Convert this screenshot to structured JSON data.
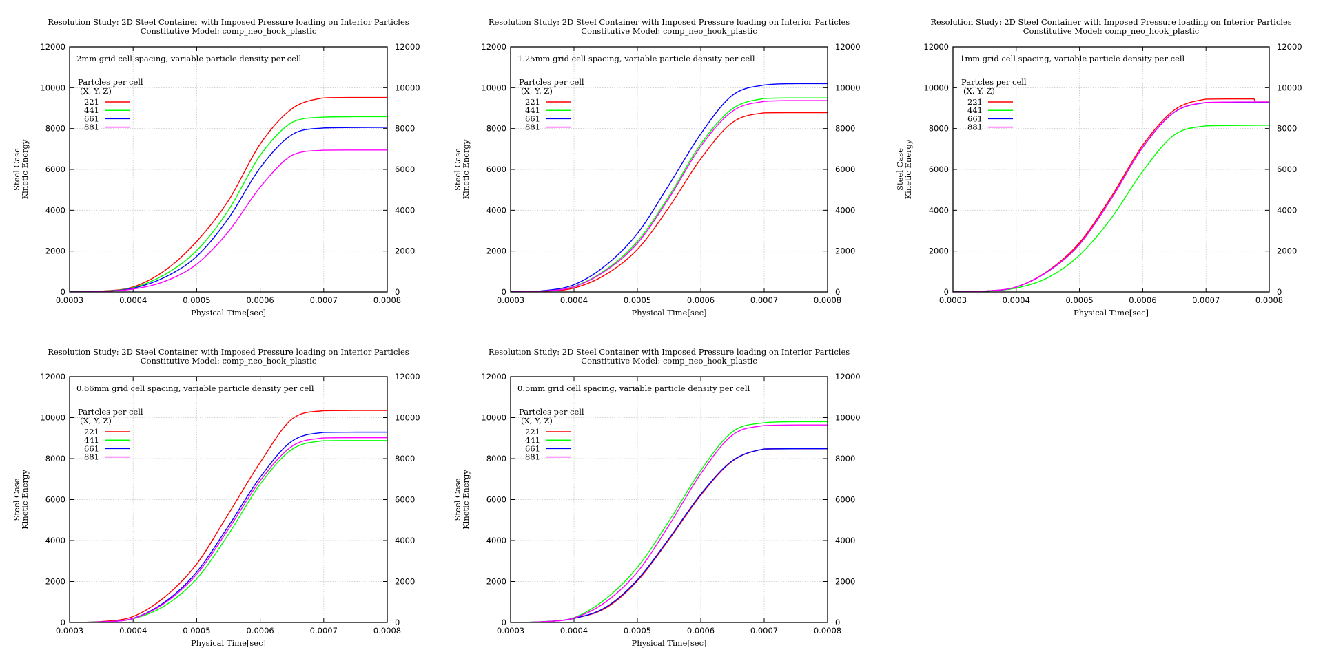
{
  "figure": {
    "colors": {
      "221": "#ff0000",
      "441": "#00ff00",
      "661": "#0000ff",
      "881": "#ff00ff"
    }
  },
  "chart_data": [
    {
      "type": "line",
      "title": "Resolution Study: 2D Steel Container with Imposed Pressure loading on Interior Particles",
      "subtitle": "Constitutive Model: comp_neo_hook_plastic",
      "annotation": "2mm grid cell spacing, variable particle density per cell",
      "xlabel": "Physical Time[sec]",
      "ylabel": [
        "Steel Case",
        "Kinetic Energy"
      ],
      "xlim": [
        0.0003,
        0.0008
      ],
      "ylim": [
        0,
        12000
      ],
      "xticks": [
        "0.0003",
        "0.0004",
        "0.0005",
        "0.0006",
        "0.0007",
        "0.0008"
      ],
      "yticks": [
        "0",
        "2000",
        "4000",
        "6000",
        "8000",
        "10000",
        "12000"
      ],
      "grid": true,
      "legend": {
        "title": [
          "Partcles per cell",
          "(X, Y, Z)"
        ],
        "placement": "top-left"
      },
      "x": [
        0.0003,
        0.00035,
        0.0004,
        0.00045,
        0.0005,
        0.00055,
        0.0006,
        0.00065,
        0.0007,
        0.00075,
        0.0008
      ],
      "series": [
        {
          "name": "221",
          "values": [
            0,
            40,
            245,
            1050,
            2470,
            4470,
            7240,
            8970,
            9500,
            9520,
            9520
          ]
        },
        {
          "name": "441",
          "values": [
            0,
            30,
            210,
            850,
            2020,
            4000,
            6690,
            8300,
            8560,
            8580,
            8580
          ]
        },
        {
          "name": "661",
          "values": [
            0,
            25,
            180,
            720,
            1740,
            3600,
            6080,
            7700,
            8030,
            8050,
            8060
          ]
        },
        {
          "name": "881",
          "values": [
            0,
            20,
            140,
            520,
            1360,
            2950,
            5130,
            6690,
            6940,
            6950,
            6950
          ]
        }
      ]
    },
    {
      "type": "line",
      "title": "Resolution Study: 2D Steel Container with Imposed Pressure loading on Interior Particles",
      "subtitle": "Constitutive Model: comp_neo_hook_plastic",
      "annotation": "1.25mm grid cell spacing, variable particle density per cell",
      "xlabel": "Physical Time[sec]",
      "ylabel": [
        "Steel Case",
        "Kinetic Energy"
      ],
      "xlim": [
        0.0003,
        0.0008
      ],
      "ylim": [
        0,
        12000
      ],
      "xticks": [
        "0.0003",
        "0.0004",
        "0.0005",
        "0.0006",
        "0.0007",
        "0.0008"
      ],
      "yticks": [
        "0",
        "2000",
        "4000",
        "6000",
        "8000",
        "10000",
        "12000"
      ],
      "grid": true,
      "legend": {
        "title": [
          "Partcles per cell",
          "(X, Y, Z)"
        ],
        "placement": "top-left"
      },
      "x": [
        0.0003,
        0.00035,
        0.0004,
        0.00045,
        0.0005,
        0.00055,
        0.0006,
        0.00065,
        0.0007,
        0.00075,
        0.0008
      ],
      "series": [
        {
          "name": "221",
          "values": [
            0,
            30,
            190,
            850,
            2080,
            4150,
            6520,
            8300,
            8770,
            8780,
            8780
          ]
        },
        {
          "name": "441",
          "values": [
            0,
            40,
            270,
            1080,
            2470,
            4700,
            7240,
            8970,
            9470,
            9500,
            9500
          ]
        },
        {
          "name": "661",
          "values": [
            0,
            55,
            355,
            1300,
            2860,
            5250,
            7740,
            9630,
            10130,
            10200,
            10200
          ]
        },
        {
          "name": "881",
          "values": [
            0,
            38,
            255,
            1040,
            2380,
            4600,
            7130,
            8850,
            9330,
            9370,
            9370
          ]
        }
      ]
    },
    {
      "type": "line",
      "title": "Resolution Study: 2D Steel Container with Imposed Pressure loading on Interior Particles",
      "subtitle": "Constitutive Model: comp_neo_hook_plastic",
      "annotation": "1mm grid cell spacing, variable particle density per cell",
      "xlabel": "Physical Time[sec]",
      "ylabel": [
        "Steel Case",
        "Kinetic Energy"
      ],
      "xlim": [
        0.0003,
        0.0008
      ],
      "ylim": [
        0,
        12000
      ],
      "xticks": [
        "0.0003",
        "0.0004",
        "0.0005",
        "0.0006",
        "0.0007",
        "0.0008"
      ],
      "yticks": [
        "0",
        "2000",
        "4000",
        "6000",
        "8000",
        "10000",
        "12000"
      ],
      "grid": true,
      "legend": {
        "title": [
          "Partcles per cell",
          "(X, Y, Z)"
        ],
        "placement": "top-left"
      },
      "x": [
        0.0003,
        0.00035,
        0.0004,
        0.00045,
        0.0005,
        0.00055,
        0.0006,
        0.00065,
        0.0007,
        0.00075,
        0.000776,
        0.000778,
        0.0008
      ],
      "series": [
        {
          "name": "221",
          "values": [
            0,
            40,
            245,
            1030,
            2410,
            4650,
            7190,
            8910,
            9440,
            9450,
            9450,
            9300,
            9300
          ]
        },
        {
          "name": "441",
          "values": [
            0,
            30,
            190,
            700,
            1800,
            3600,
            5910,
            7690,
            8130,
            8150,
            8155,
            8160,
            8160
          ]
        },
        {
          "name": "661",
          "values": [
            0,
            40,
            240,
            1000,
            2330,
            4550,
            7080,
            8800,
            9270,
            9290,
            9290,
            9290,
            9290
          ]
        },
        {
          "name": "881",
          "values": [
            0,
            40,
            240,
            1010,
            2340,
            4560,
            7090,
            8810,
            9280,
            9300,
            9300,
            9300,
            9300
          ]
        }
      ]
    },
    {
      "type": "line",
      "title": "Resolution Study: 2D Steel Container with Imposed Pressure loading on Interior Particles",
      "subtitle": "Constitutive Model: comp_neo_hook_plastic",
      "annotation": "0.66mm grid cell spacing, variable particle density per cell",
      "xlabel": "Physical Time[sec]",
      "ylabel": [
        "Steel Case",
        "Kinetic Energy"
      ],
      "xlim": [
        0.0003,
        0.0008
      ],
      "ylim": [
        0,
        12000
      ],
      "xticks": [
        "0.0003",
        "0.0004",
        "0.0005",
        "0.0006",
        "0.0007",
        "0.0008"
      ],
      "yticks": [
        "0",
        "2000",
        "4000",
        "6000",
        "8000",
        "10000",
        "12000"
      ],
      "grid": true,
      "legend": {
        "title": [
          "Partcles per cell",
          "(X, Y, Z)"
        ],
        "placement": "top-left"
      },
      "x": [
        0.0003,
        0.00035,
        0.0004,
        0.00045,
        0.0005,
        0.00055,
        0.0006,
        0.00065,
        0.0007,
        0.00075,
        0.0008
      ],
      "series": [
        {
          "name": "221",
          "values": [
            0,
            45,
            290,
            1250,
            2850,
            5300,
            7810,
            9930,
            10340,
            10350,
            10350
          ]
        },
        {
          "name": "441",
          "values": [
            0,
            25,
            180,
            820,
            2130,
            4300,
            6750,
            8450,
            8870,
            8880,
            8880
          ]
        },
        {
          "name": "661",
          "values": [
            0,
            30,
            200,
            1000,
            2460,
            4700,
            7090,
            8850,
            9280,
            9290,
            9290
          ]
        },
        {
          "name": "881",
          "values": [
            0,
            28,
            190,
            950,
            2350,
            4550,
            6920,
            8600,
            9010,
            9020,
            9020
          ]
        }
      ]
    },
    {
      "type": "line",
      "title": "Resolution Study: 2D Steel Container with Imposed Pressure loading on Interior Particles",
      "subtitle": "Constitutive Model: comp_neo_hook_plastic",
      "annotation": "0.5mm grid cell spacing, variable particle density per cell",
      "xlabel": "Physical Time[sec]",
      "ylabel": [
        "Steel Case",
        "Kinetic Energy"
      ],
      "xlim": [
        0.0003,
        0.0008
      ],
      "ylim": [
        0,
        12000
      ],
      "xticks": [
        "0.0003",
        "0.0004",
        "0.0005",
        "0.0006",
        "0.0007",
        "0.0008"
      ],
      "yticks": [
        "0",
        "2000",
        "4000",
        "6000",
        "8000",
        "10000",
        "12000"
      ],
      "grid": true,
      "legend": {
        "title": [
          "Partcles per cell",
          "(X, Y, Z)"
        ],
        "placement": "top-left"
      },
      "x": [
        0.0003,
        0.00035,
        0.0004,
        0.00045,
        0.0005,
        0.00055,
        0.0006,
        0.00065,
        0.0007,
        0.00075,
        0.0008
      ],
      "series": [
        {
          "name": "221",
          "values": [
            0,
            30,
            200,
            700,
            2030,
            4050,
            6210,
            7880,
            8470,
            8480,
            8480
          ]
        },
        {
          "name": "441",
          "values": [
            0,
            40,
            235,
            1150,
            2690,
            4950,
            7420,
            9310,
            9750,
            9800,
            9800
          ]
        },
        {
          "name": "661",
          "values": [
            0,
            30,
            200,
            740,
            2080,
            4100,
            6260,
            7900,
            8470,
            8480,
            8480
          ]
        },
        {
          "name": "881",
          "values": [
            0,
            35,
            215,
            1000,
            2460,
            4750,
            7260,
            9150,
            9610,
            9640,
            9640
          ]
        }
      ]
    }
  ]
}
